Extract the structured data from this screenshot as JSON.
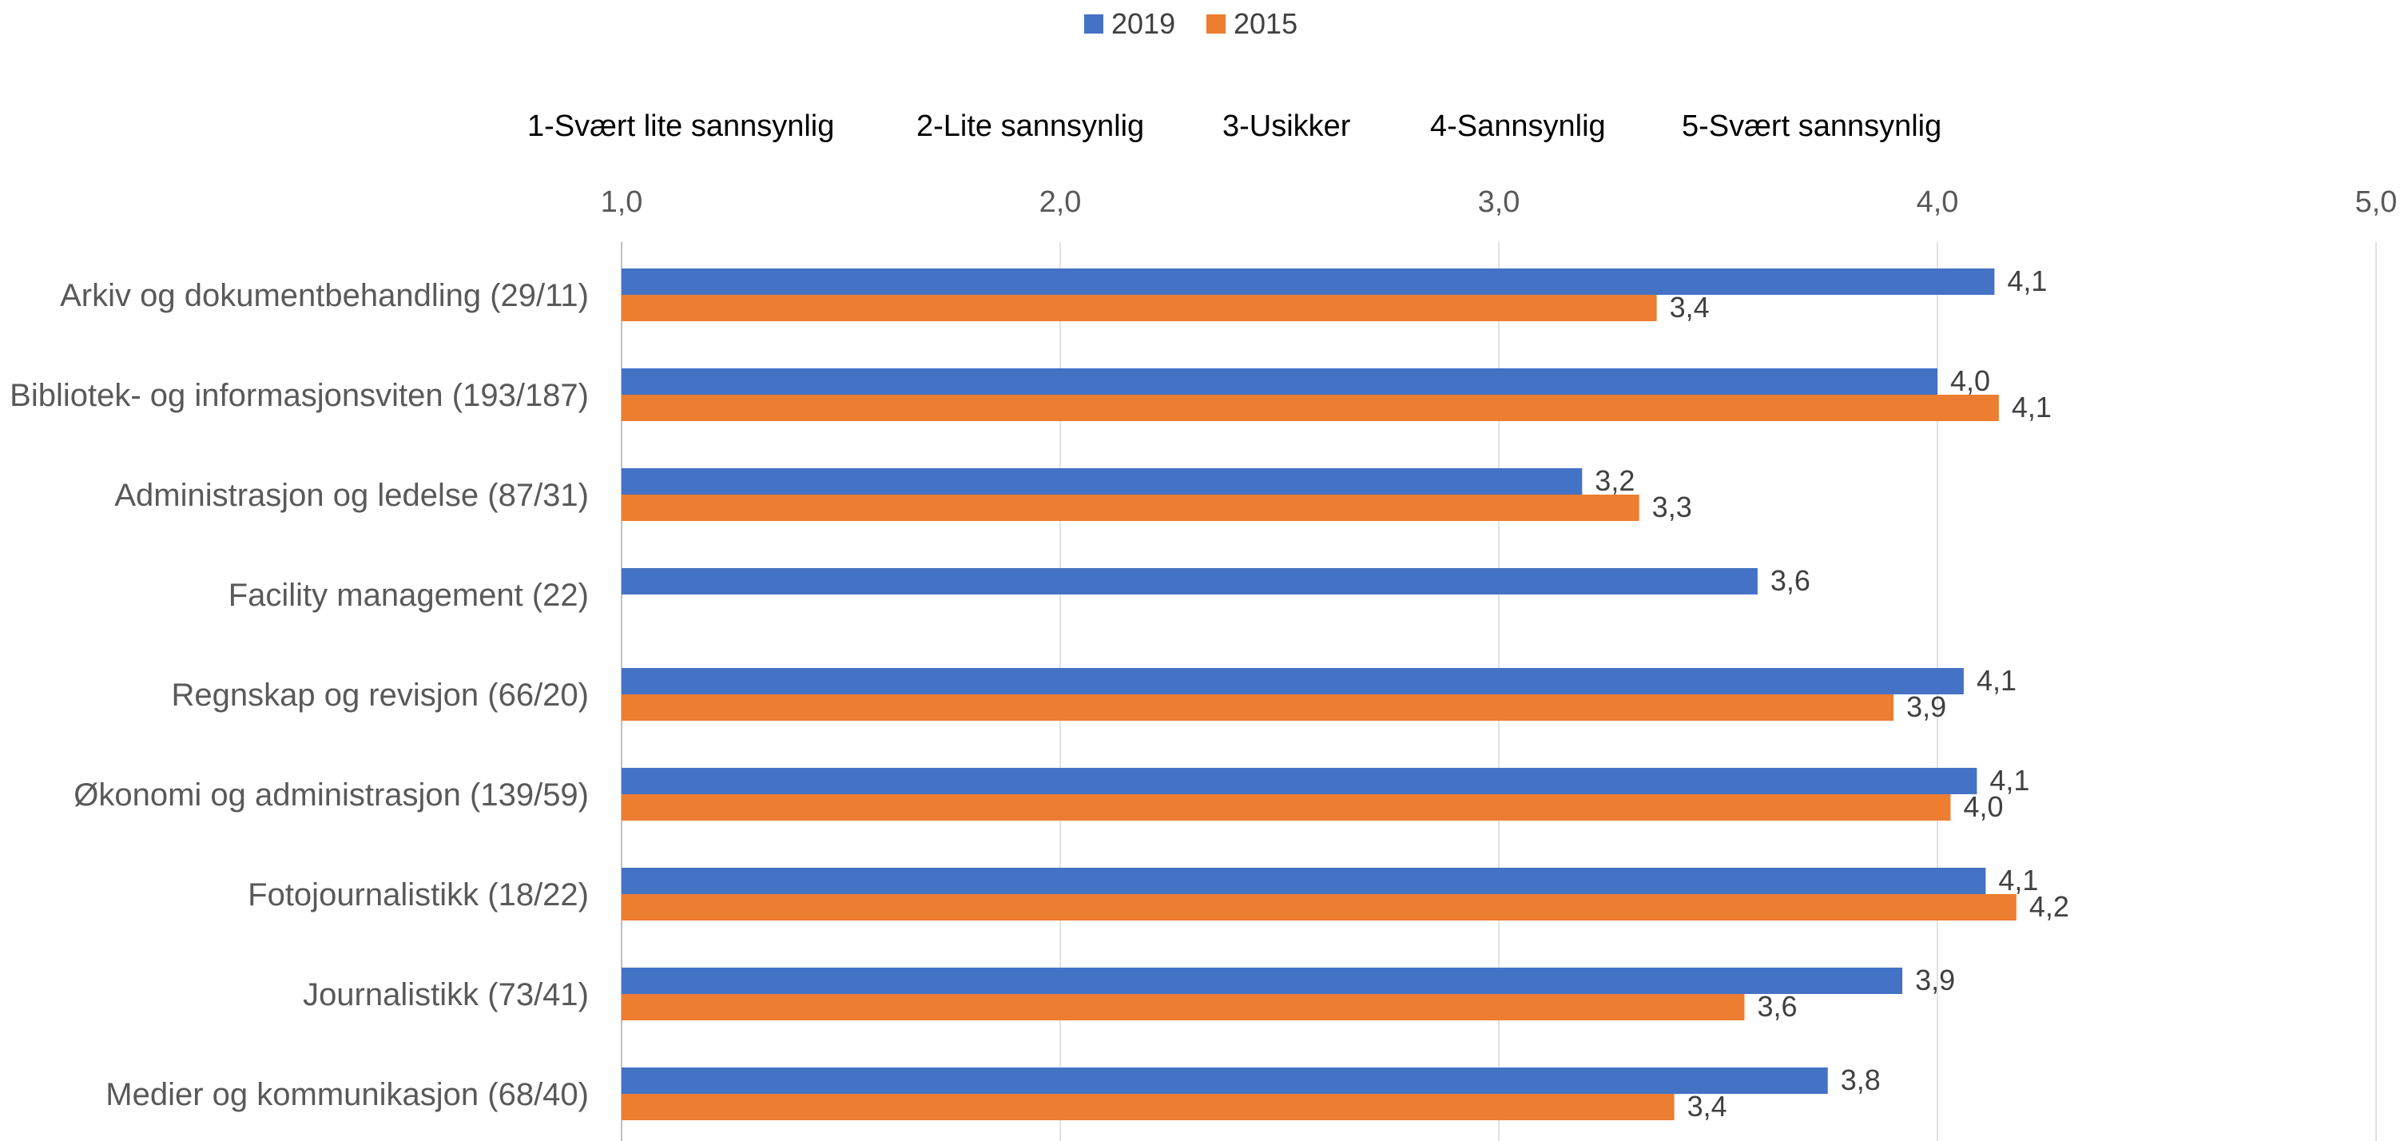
{
  "legend": [
    {
      "name": "2019",
      "color": "#4472C4"
    },
    {
      "name": "2015",
      "color": "#ED7D31"
    }
  ],
  "scale_labels": [
    "1-Svært lite sannsynlig",
    "2-Lite sannsynlig",
    "3-Usikker",
    "4-Sannsynlig",
    "5-Svært sannsynlig"
  ],
  "chart_data": {
    "type": "bar",
    "orientation": "horizontal",
    "categories": [
      "Arkiv og dokumentbehandling (29/11)",
      "Bibliotek- og informasjonsviten (193/187)",
      "Administrasjon og ledelse (87/31)",
      "Facility management (22)",
      "Regnskap og revisjon (66/20)",
      "Økonomi og administrasjon (139/59)",
      "Fotojournalistikk (18/22)",
      "Journalistikk (73/41)",
      "Medier og kommunikasjon (68/40)"
    ],
    "series": [
      {
        "name": "2019",
        "color": "#4472C4",
        "values": [
          4.13,
          4.0,
          3.19,
          3.59,
          4.06,
          4.09,
          4.11,
          3.92,
          3.75
        ],
        "labels": [
          "4,1",
          "4,0",
          "3,2",
          "3,6",
          "4,1",
          "4,1",
          "4,1",
          "3,9",
          "3,8"
        ]
      },
      {
        "name": "2015",
        "color": "#ED7D31",
        "values": [
          3.36,
          4.14,
          3.32,
          null,
          3.9,
          4.03,
          4.18,
          3.56,
          3.4
        ],
        "labels": [
          "3,4",
          "4,1",
          "3,3",
          null,
          "3,9",
          "4,0",
          "4,2",
          "3,6",
          "3,4"
        ]
      }
    ],
    "xlim": [
      1.0,
      5.0
    ],
    "xticks": [
      1.0,
      2.0,
      3.0,
      4.0,
      5.0
    ],
    "xtick_labels": [
      "1,0",
      "2,0",
      "3,0",
      "4,0",
      "5,0"
    ],
    "axis_position": "top",
    "grid": true,
    "legend_position": "top-center"
  }
}
